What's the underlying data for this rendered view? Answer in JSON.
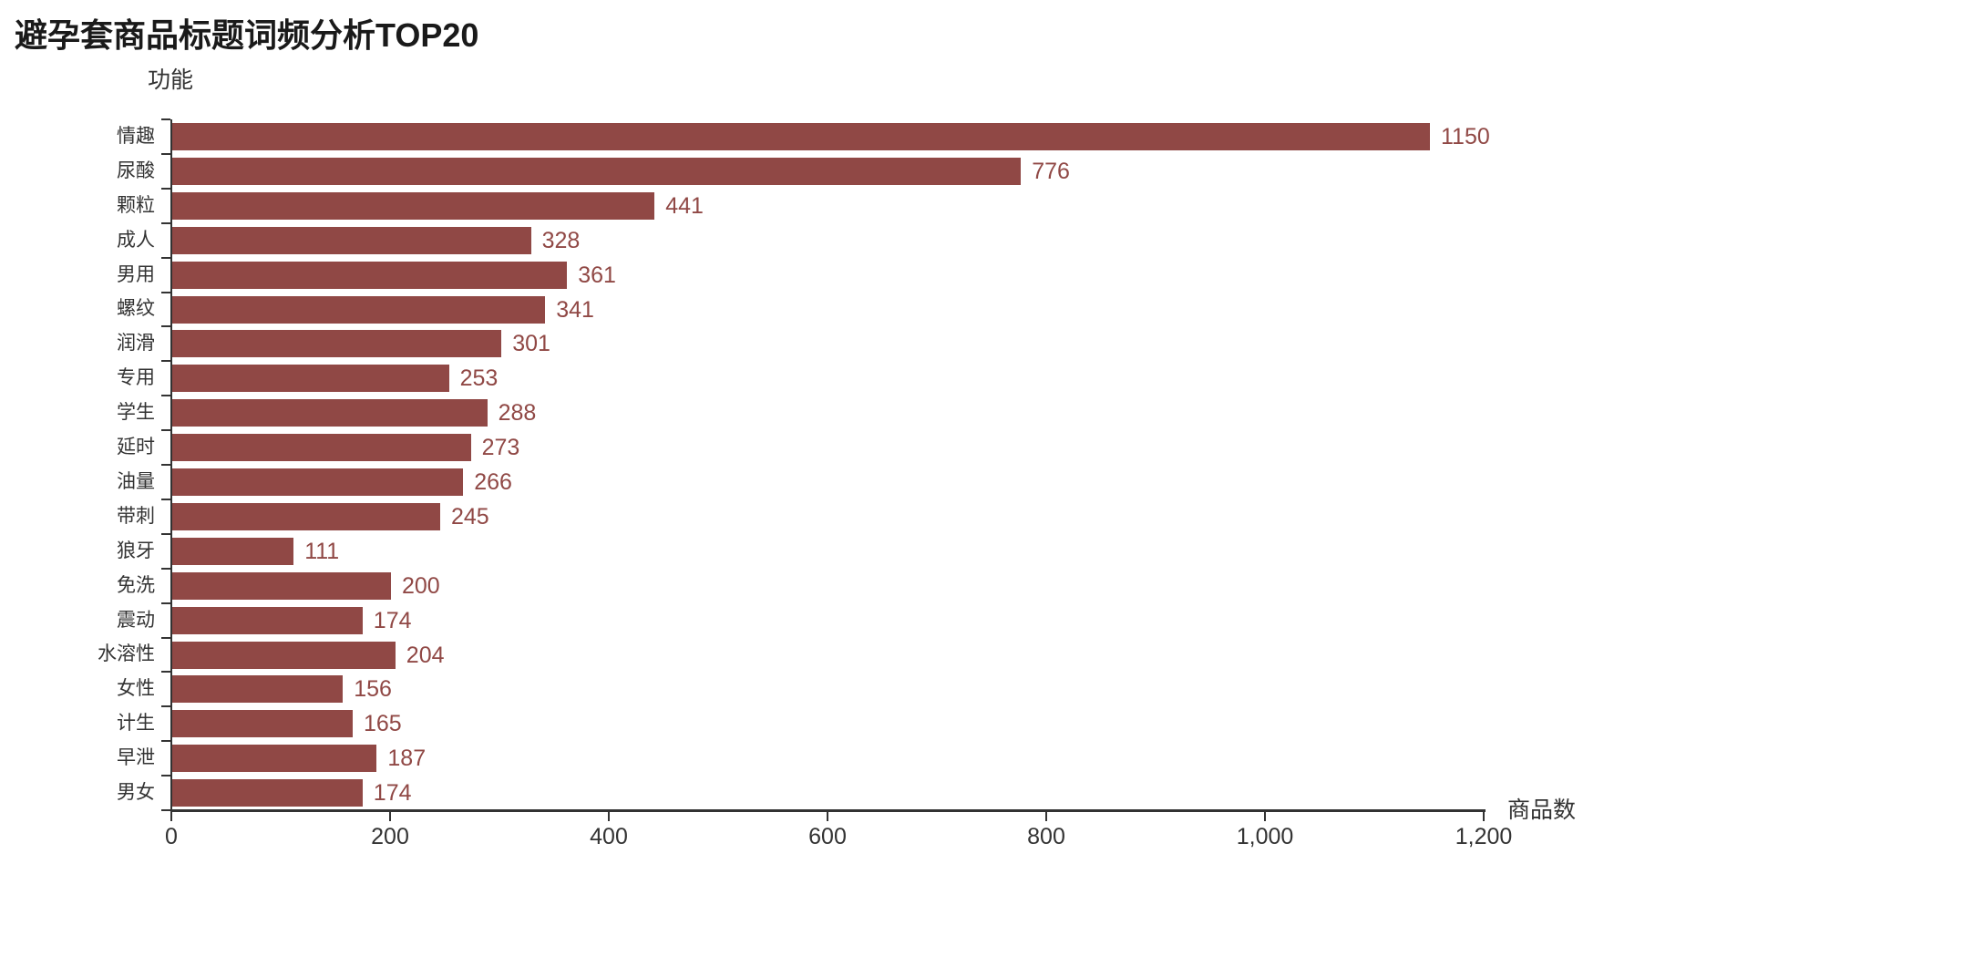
{
  "title": "避孕套商品标题词频分析TOP20",
  "colors": {
    "bar": "#904845",
    "value_label": "#904845",
    "axis": "#333333",
    "axis_text": "#333333",
    "title_text": "#1a1a1a",
    "background": "#ffffff"
  },
  "chart_data": {
    "type": "bar",
    "orientation": "horizontal",
    "title": "避孕套商品标题词频分析TOP20",
    "y_axis_name": "功能",
    "x_axis_name": "商品数",
    "categories": [
      "情趣",
      "尿酸",
      "颗粒",
      "成人",
      "男用",
      "螺纹",
      "润滑",
      "专用",
      "学生",
      "延时",
      "油量",
      "带刺",
      "狼牙",
      "免洗",
      "震动",
      "水溶性",
      "女性",
      "计生",
      "早泄",
      "男女"
    ],
    "values": [
      1150,
      776,
      441,
      328,
      361,
      341,
      301,
      253,
      288,
      273,
      266,
      245,
      111,
      200,
      174,
      204,
      156,
      165,
      187,
      174
    ],
    "value_labels_visible": true,
    "xlim": [
      0,
      1200
    ],
    "x_tick_values": [
      0,
      200,
      400,
      600,
      800,
      1000,
      1200
    ],
    "x_tick_labels": [
      "0",
      "200",
      "400",
      "600",
      "800",
      "1,000",
      "1,200"
    ],
    "grid_lines": false,
    "legend": false,
    "bar_color": "#904845"
  }
}
